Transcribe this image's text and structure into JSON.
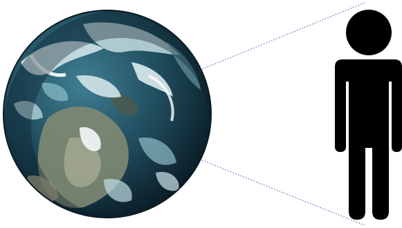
{
  "illustration": {
    "earth": {
      "icon": "earth-globe-icon",
      "colors": {
        "ocean_dark": "#123040",
        "ocean_mid": "#2b5f73",
        "cloud": "#d9ecef",
        "cloud_mid": "#8fbfc9",
        "land": "#7f8a73",
        "land_dark": "#4e5a4b",
        "rim": "#0a1b25"
      }
    },
    "person": {
      "icon": "person-silhouette-icon",
      "color": "#000000"
    },
    "sight_lines": {
      "color": "#3b3bb0",
      "style": "dotted"
    }
  }
}
